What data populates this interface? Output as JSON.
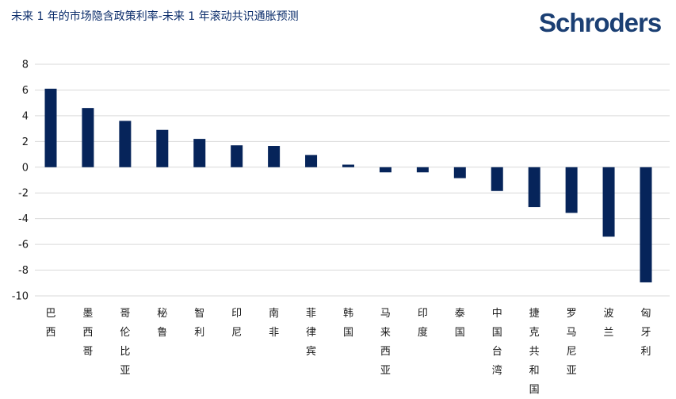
{
  "header": {
    "title": "未来 1 年的市场隐含政策利率-未来 1 年滚动共识通胀预测",
    "logo_text": "Schroders"
  },
  "colors": {
    "bar": "#06245a",
    "grid": "#d9d9d9",
    "logo": "#1b3f73"
  },
  "chart_data": {
    "type": "bar",
    "title": "未来 1 年的市场隐含政策利率-未来 1 年滚动共识通胀预测",
    "xlabel": "",
    "ylabel": "",
    "ylim": [
      -10,
      8
    ],
    "yticks": [
      8,
      6,
      4,
      2,
      0,
      -2,
      -4,
      -6,
      -8,
      -10
    ],
    "grid": true,
    "legend": "none",
    "categories": [
      "巴西",
      "墨西哥",
      "哥伦比亚",
      "秘鲁",
      "智利",
      "印尼",
      "南非",
      "菲律宾",
      "韩国",
      "马来西亚",
      "印度",
      "泰国",
      "中国台湾",
      "捷克共和国",
      "罗马尼亚",
      "波兰",
      "匈牙利"
    ],
    "values": [
      6.1,
      4.6,
      3.6,
      2.9,
      2.2,
      1.7,
      1.65,
      0.95,
      0.2,
      -0.4,
      -0.4,
      -0.85,
      -1.85,
      -3.1,
      -3.55,
      -5.4,
      -8.95
    ]
  }
}
